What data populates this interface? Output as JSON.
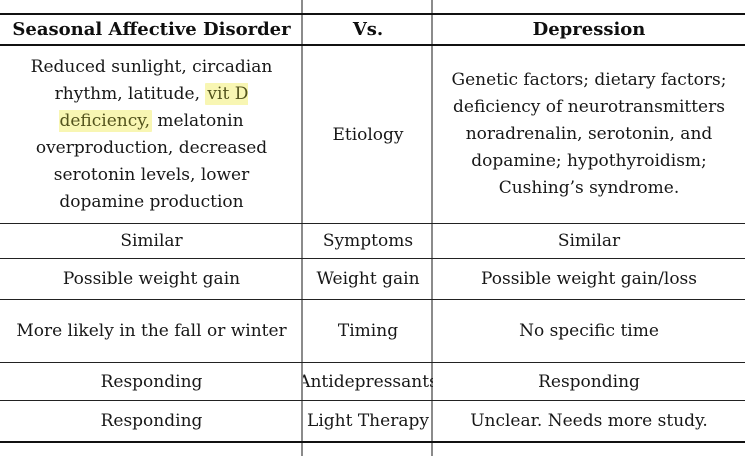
{
  "table": {
    "header": {
      "sad": "Seasonal Affective Disorder",
      "vs": "Vs.",
      "depression": "Depression"
    },
    "etiology": {
      "sad": {
        "pre": "Reduced sunlight, circadian rhythm, latitude, ",
        "highlight": "vit D deficiency,",
        "post": " melatonin overproduction, decreased serotonin levels, lower dopamine production"
      },
      "vs": "Etiology",
      "depression": "Genetic factors; dietary factors; deficiency of neurotransmitters noradrenalin, serotonin, and dopamine; hypothyroidism; Cushing’s syndrome."
    },
    "rows": [
      {
        "sad": "Similar",
        "vs": "Symptoms",
        "depression": "Similar"
      },
      {
        "sad": "Possible weight gain",
        "vs": "Weight gain",
        "depression": "Possible weight gain/loss"
      },
      {
        "sad": "More likely in the fall or winter",
        "vs": "Timing",
        "depression": "No specific time"
      },
      {
        "sad": "Responding",
        "vs": "Antidepressants",
        "depression": "Responding"
      },
      {
        "sad": "Responding",
        "vs": "Light Therapy",
        "depression": "Unclear. Needs more study."
      }
    ]
  },
  "colors": {
    "highlight_background": "#f8f6b3",
    "highlight_text": "#53531d",
    "vertical_rule": "#8b8b8b",
    "border_thick": "#111111",
    "border_thin": "#222222"
  }
}
